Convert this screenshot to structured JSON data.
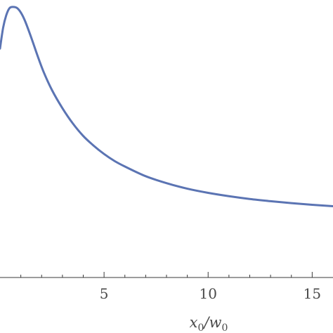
{
  "chart_data": {
    "type": "line",
    "xlabel": "x0/w0",
    "xlabel_parts": {
      "base1": "x",
      "sub1": "0",
      "sep": "/",
      "base2": "w",
      "sub2": "0"
    },
    "ylabel": "",
    "xlim": [
      0,
      16
    ],
    "ylim": [
      0,
      1.0
    ],
    "x_ticks": [
      5,
      10,
      15
    ],
    "grid": false,
    "series": [
      {
        "color": "#5b74b3",
        "x": [
          0,
          0.15,
          0.3,
          0.45,
          0.6,
          0.8,
          1.0,
          1.2,
          1.5,
          1.8,
          2.1,
          2.5,
          3.0,
          3.5,
          4.0,
          4.5,
          5.0,
          5.5,
          6.0,
          7.0,
          8.0,
          9.0,
          10.0,
          11.0,
          12.0,
          13.0,
          14.0,
          15.0,
          16.0
        ],
        "y": [
          0.825,
          0.9,
          0.945,
          0.97,
          0.975,
          0.972,
          0.955,
          0.925,
          0.865,
          0.8,
          0.74,
          0.675,
          0.61,
          0.555,
          0.51,
          0.475,
          0.445,
          0.42,
          0.4,
          0.365,
          0.34,
          0.32,
          0.305,
          0.293,
          0.283,
          0.275,
          0.268,
          0.262,
          0.257
        ]
      }
    ]
  }
}
